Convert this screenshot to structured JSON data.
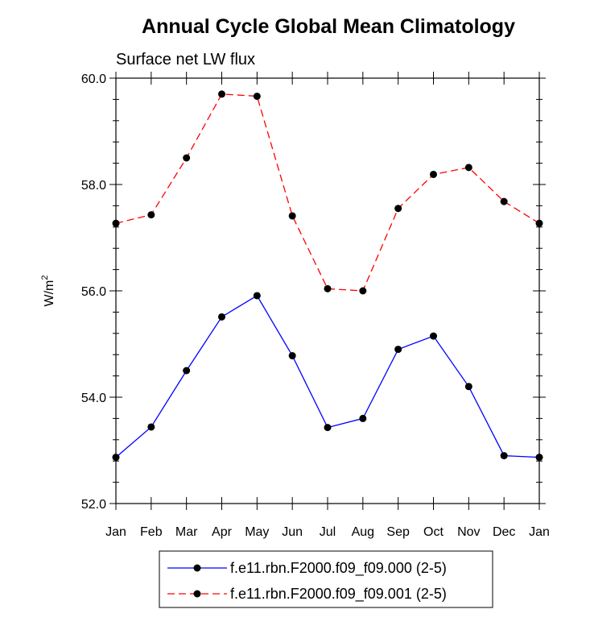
{
  "chart_data": {
    "type": "line",
    "title": "Annual Cycle Global Mean Climatology",
    "subtitle": "Surface net LW flux",
    "ylabel_base": "W/m",
    "ylabel_sup": "2",
    "categories": [
      "Jan",
      "Feb",
      "Mar",
      "Apr",
      "May",
      "Jun",
      "Jul",
      "Aug",
      "Sep",
      "Oct",
      "Nov",
      "Dec",
      "Jan"
    ],
    "ylim": [
      52.0,
      60.0
    ],
    "yticks": [
      52.0,
      54.0,
      56.0,
      58.0,
      60.0
    ],
    "ytick_labels": [
      "52.0",
      "54.0",
      "56.0",
      "58.0",
      "60.0"
    ],
    "minor_ytick_step": 0.4,
    "grid": false,
    "legend_position": "bottom-center",
    "series": [
      {
        "name": "f.e11.rbn.F2000.f09_f09.000 (2-5)",
        "color": "#0000ff",
        "line_style": "solid",
        "marker": "circle",
        "values": [
          52.87,
          53.44,
          54.5,
          55.51,
          55.91,
          54.78,
          53.43,
          53.6,
          54.9,
          55.15,
          54.2,
          52.9,
          52.87
        ]
      },
      {
        "name": "f.e11.rbn.F2000.f09_f09.001 (2-5)",
        "color": "#ff0000",
        "line_style": "dashed",
        "marker": "circle",
        "values": [
          57.27,
          57.43,
          58.5,
          59.7,
          59.66,
          57.41,
          56.04,
          56.0,
          57.55,
          58.19,
          58.32,
          57.68,
          57.27
        ]
      }
    ]
  }
}
